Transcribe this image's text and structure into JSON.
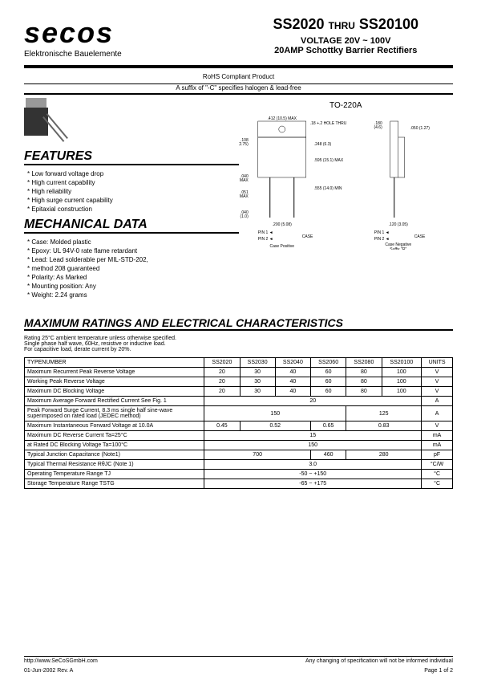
{
  "header": {
    "logo": "secos",
    "logo_sub": "Elektronische Bauelemente",
    "part_start": "SS2020",
    "thru": "THRU",
    "part_end": "SS20100",
    "voltage": "VOLTAGE 20V ~ 100V",
    "product": "20AMP Schottky Barrier Rectifiers"
  },
  "rohs": {
    "line1": "RoHS Compliant Product",
    "line2": "A suffix of \"-C\" specifies halogen & lead-free"
  },
  "features": {
    "title": "FEATURES",
    "items": [
      "Low forward voltage drop",
      "High current capability",
      "High reliability",
      "High surge current capability",
      "Epitaxial construction"
    ]
  },
  "mechanical": {
    "title": "MECHANICAL DATA",
    "items": [
      "Case: Molded plastic",
      "Epoxy: UL 94V-0 rate flame retardant",
      "Lead: Lead solderable per MIL-STD-202,",
      "  method 208 guaranteed",
      "Polarity: As Marked",
      "Mounting position: Any",
      "Weight: 2.24 grams"
    ]
  },
  "package": {
    "label": "TO-220A",
    "dims": [
      "412 (10.5) MAX",
      ".18 +.2 HOLE THRU",
      ".180 (4.6)",
      ".050 (1.27)",
      ".108 (2.75)",
      ".248 (6.3)",
      ".595 (15.1) MAX",
      ".040 (1.0) MAX",
      ".555 (14.0) MIN",
      ".051 (1.3) MAX",
      ".040 (1.0)",
      ".200 (5.08)",
      ".120 (3.05)"
    ],
    "pin1": "PIN 1",
    "pin2": "PIN 2",
    "case_pos": "Case Positive",
    "case_neg": "Case Negative Suffix \"R\"",
    "case_label": "CASE"
  },
  "ratings": {
    "title": "MAXIMUM RATINGS AND ELECTRICAL CHARACTERISTICS",
    "note1": "Rating 25°C ambient temperature unless otherwise specified.",
    "note2": "Single phase half wave, 60Hz, resistive or inductive load.",
    "note3": "For capacitive load, derate current by 20%.",
    "type_header": "TYPENUMBER",
    "units_header": "UNITS",
    "columns": [
      "SS2020",
      "SS2030",
      "SS2040",
      "SS2060",
      "SS2080",
      "SS20100"
    ],
    "rows": [
      {
        "param": "Maximum Recurrent Peak Reverse Voltage",
        "vals": [
          "20",
          "30",
          "40",
          "60",
          "80",
          "100"
        ],
        "unit": "V"
      },
      {
        "param": "Working Peak Reverse Voltage",
        "vals": [
          "20",
          "30",
          "40",
          "60",
          "80",
          "100"
        ],
        "unit": "V"
      },
      {
        "param": "Maximum DC Blocking Voltage",
        "vals": [
          "20",
          "30",
          "40",
          "60",
          "80",
          "100"
        ],
        "unit": "V"
      },
      {
        "param": "Maximum Average Forward Rectified Current\nSee Fig. 1",
        "span": "20",
        "unit": "A"
      },
      {
        "param": "Peak Forward Surge Current, 8.3 ms single half sine-wave superimposed on rated load (JEDEC method)",
        "spans": [
          {
            "v": "150",
            "c": 4
          },
          {
            "v": "125",
            "c": 2
          }
        ],
        "unit": "A"
      },
      {
        "param": "Maximum Instantaneous Forward Voltage at    10.0A",
        "spans": [
          {
            "v": "0.45",
            "c": 1
          },
          {
            "v": "0.52",
            "c": 2
          },
          {
            "v": "0.65",
            "c": 1
          },
          {
            "v": "0.83",
            "c": 2
          }
        ],
        "unit": "V"
      },
      {
        "param": "Maximum DC Reverse Current         Ta=25°C",
        "span": "15",
        "unit": "mA"
      },
      {
        "param": "at Rated DC Blocking Voltage         Ta=100°C",
        "span": "150",
        "unit": "mA"
      },
      {
        "param": "Typical Junction Capacitance (Note1)",
        "spans": [
          {
            "v": "700",
            "c": 3
          },
          {
            "v": "460",
            "c": 1
          },
          {
            "v": "280",
            "c": 2
          }
        ],
        "unit": "pF"
      },
      {
        "param": "Typical Thermal Resistance RθJC (Note 1)",
        "span": "3.0",
        "unit": "°C/W"
      },
      {
        "param": "Operating Temperature Range TJ",
        "span": "-50 ~ +150",
        "unit": "°C"
      },
      {
        "param": "Storage Temperature Range TSTG",
        "span": "-65 ~ +175",
        "unit": "°C"
      }
    ]
  },
  "footer": {
    "url": "http://www.SeCoSGmbH.com",
    "disclaimer": "Any changing of specification will not be informed individual",
    "date": "01-Jun-2002  Rev. A",
    "page": "Page 1 of 2"
  }
}
